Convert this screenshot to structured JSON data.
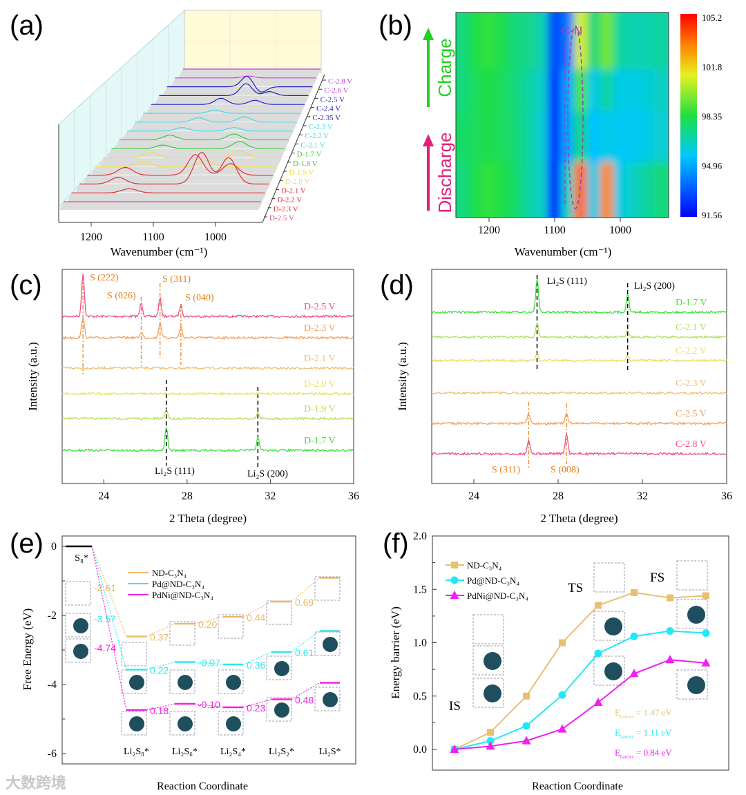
{
  "panel_labels": [
    "(a)",
    "(b)",
    "(c)",
    "(d)",
    "(e)",
    "(f)"
  ],
  "watermark": "大数跨境",
  "chart_data": [
    {
      "panel": "a",
      "type": "line",
      "subtype": "3d-waterfall",
      "xlabel": "Wavenumber (cm⁻¹)",
      "xticks": [
        "1200",
        "1100",
        "1000"
      ],
      "xlim": [
        1245,
        925
      ],
      "series": [
        {
          "name": "D-2.5 V",
          "color": "#e0408a",
          "peaks": []
        },
        {
          "name": "D-2.3 V",
          "color": "#e03030",
          "peaks": [
            [
              1150,
              6
            ]
          ]
        },
        {
          "name": "D-2.2 V",
          "color": "#e03030",
          "peaks": [
            [
              1180,
              10
            ],
            [
              1040,
              48
            ],
            [
              995,
              40
            ]
          ]
        },
        {
          "name": "D-2.1 V",
          "color": "#e03030",
          "peaks": [
            [
              1180,
              12
            ],
            [
              1060,
              32
            ],
            [
              1000,
              18
            ]
          ]
        },
        {
          "name": "D-2.0 V",
          "color": "#e8e040",
          "peaks": [
            [
              1160,
              6
            ],
            [
              1050,
              8
            ]
          ]
        },
        {
          "name": "D-1.9 V",
          "color": "#e8e040",
          "peaks": [
            [
              1160,
              8
            ],
            [
              1000,
              10
            ]
          ]
        },
        {
          "name": "D-1.8 V",
          "color": "#30d030",
          "peaks": [
            [
              1150,
              6
            ],
            [
              1010,
              12
            ]
          ]
        },
        {
          "name": "D-1.7 V",
          "color": "#30d030",
          "peaks": [
            [
              1150,
              8
            ],
            [
              1030,
              10
            ]
          ]
        },
        {
          "name": "C-2.1 V",
          "color": "#40d8e8",
          "peaks": [
            [
              1140,
              6
            ],
            [
              1040,
              6
            ]
          ]
        },
        {
          "name": "C-2.2 V",
          "color": "#40d8e8",
          "peaks": [
            [
              1120,
              8
            ],
            [
              1030,
              10
            ]
          ]
        },
        {
          "name": "C-2.3 V",
          "color": "#40d8e8",
          "peaks": [
            [
              1100,
              6
            ]
          ]
        },
        {
          "name": "C-2.35 V",
          "color": "#2020c0",
          "peaks": [
            [
              1100,
              12
            ],
            [
              1030,
              8
            ]
          ]
        },
        {
          "name": "C-2.4 V",
          "color": "#2020c0",
          "peaks": [
            [
              1060,
              24
            ],
            [
              1010,
              8
            ]
          ]
        },
        {
          "name": "C-2.5 V",
          "color": "#2020c0",
          "peaks": [
            [
              1070,
              22
            ],
            [
              1040,
              -12
            ]
          ]
        },
        {
          "name": "C-2.6 V",
          "color": "#c040e0",
          "peaks": [
            [
              1080,
              4
            ]
          ]
        },
        {
          "name": "C-2.8 V",
          "color": "#c040e0",
          "peaks": []
        }
      ]
    },
    {
      "panel": "b",
      "type": "heatmap",
      "xlabel": "Wavenumber (cm⁻¹)",
      "xticks": [
        "1200",
        "1100",
        "1000"
      ],
      "xlim": [
        1250,
        930
      ],
      "annotation": "C-N",
      "side_labels": {
        "charge": "Charge",
        "discharge": "Discharge"
      },
      "colorbar": {
        "min": 91.56,
        "max": 105.2,
        "ticks": [
          "105.2",
          "101.8",
          "98.35",
          "94.96",
          "91.56"
        ]
      },
      "x_centers": [
        1240,
        1220,
        1200,
        1180,
        1160,
        1140,
        1120,
        1100,
        1080,
        1060,
        1040,
        1020,
        1000,
        980,
        960,
        940
      ],
      "rows": [
        {
          "region": "charge-top",
          "values": [
            97.5,
            98.3,
            98.6,
            98.2,
            97.6,
            97.3,
            96.8,
            93.0,
            94.0,
            100.8,
            97.5,
            99.5,
            97.0,
            96.8,
            96.8,
            97.0
          ]
        },
        {
          "region": "charge-mid",
          "values": [
            97.5,
            98.0,
            98.3,
            98.0,
            97.5,
            97.0,
            96.5,
            92.5,
            95.0,
            99.0,
            96.0,
            97.0,
            96.0,
            96.0,
            96.2,
            96.5
          ]
        },
        {
          "region": "charge-start",
          "values": [
            97.8,
            98.0,
            98.2,
            98.0,
            97.6,
            97.0,
            96.3,
            92.5,
            95.0,
            97.5,
            95.5,
            96.0,
            95.8,
            95.8,
            96.0,
            96.3
          ]
        },
        {
          "region": "discharge",
          "values": [
            97.5,
            98.2,
            98.6,
            98.3,
            97.8,
            97.0,
            96.5,
            92.0,
            96.5,
            103.5,
            96.0,
            103.0,
            96.0,
            96.5,
            97.0,
            97.5
          ]
        }
      ]
    },
    {
      "panel": "c",
      "type": "line",
      "xlabel": "2 Theta (degree)",
      "ylabel": "Intensity (a.u.)",
      "xlim": [
        22,
        36
      ],
      "xticks": [
        "24",
        "28",
        "32",
        "36"
      ],
      "series": [
        {
          "name": "D-2.5 V",
          "color": "#f0508a",
          "peaks": [
            [
              23.0,
              62
            ],
            [
              25.8,
              20
            ],
            [
              26.7,
              26
            ],
            [
              27.7,
              16
            ]
          ]
        },
        {
          "name": "D-2.3 V",
          "color": "#f0a060",
          "peaks": [
            [
              23.0,
              30
            ],
            [
              25.8,
              8
            ],
            [
              26.7,
              22
            ],
            [
              27.7,
              16
            ]
          ]
        },
        {
          "name": "D-2.1 V",
          "color": "#f0c070",
          "peaks": []
        },
        {
          "name": "D-2.0 V",
          "color": "#e8e060",
          "peaks": []
        },
        {
          "name": "D-1.9 V",
          "color": "#b8e060",
          "peaks": [
            [
              27.0,
              14
            ],
            [
              31.4,
              8
            ]
          ]
        },
        {
          "name": "D-1.7 V",
          "color": "#40e040",
          "peaks": [
            [
              27.0,
              34
            ],
            [
              31.4,
              18
            ]
          ]
        }
      ],
      "annotations": [
        {
          "text": "S (222)",
          "color": "#e08020",
          "x": 23.0
        },
        {
          "text": "S (026)",
          "color": "#e08020",
          "x": 25.8
        },
        {
          "text": "S (311)",
          "color": "#e08020",
          "x": 26.7
        },
        {
          "text": "S (040)",
          "color": "#e08020",
          "x": 27.7
        },
        {
          "text": "Li₂S (111)",
          "color": "#000000",
          "x": 27.0
        },
        {
          "text": "Li₂S (200)",
          "color": "#000000",
          "x": 31.4
        }
      ]
    },
    {
      "panel": "d",
      "type": "line",
      "xlabel": "2 Theta (degree)",
      "ylabel": "Intensity (a.u.)",
      "xlim": [
        22,
        36
      ],
      "xticks": [
        "24",
        "28",
        "32",
        "36"
      ],
      "series": [
        {
          "name": "D-1.7 V",
          "color": "#40e040",
          "peaks": [
            [
              27.0,
              48
            ],
            [
              31.3,
              26
            ]
          ]
        },
        {
          "name": "C-2.1 V",
          "color": "#b0e060",
          "peaks": [
            [
              27.0,
              20
            ],
            [
              31.3,
              10
            ]
          ]
        },
        {
          "name": "C-2.2 V",
          "color": "#e8e060",
          "peaks": [
            [
              27.0,
              10
            ],
            [
              31.3,
              7
            ]
          ]
        },
        {
          "name": "C-2.3 V",
          "color": "#f0c070",
          "peaks": []
        },
        {
          "name": "C-2.5 V",
          "color": "#f0a060",
          "peaks": [
            [
              26.6,
              14
            ],
            [
              28.4,
              14
            ]
          ]
        },
        {
          "name": "C-2.8 V",
          "color": "#f0508a",
          "peaks": [
            [
              26.6,
              20
            ],
            [
              28.4,
              28
            ]
          ]
        }
      ],
      "annotations": [
        {
          "text": "Li₂S (111)",
          "color": "#000000",
          "x": 27.0
        },
        {
          "text": "Li₂S (200)",
          "color": "#000000",
          "x": 31.3
        },
        {
          "text": "S (311)",
          "color": "#e08020",
          "x": 26.6
        },
        {
          "text": "S (008)",
          "color": "#e08020",
          "x": 28.4
        }
      ]
    },
    {
      "panel": "e",
      "type": "line",
      "subtype": "energy-level-diagram",
      "xlabel": "Reaction Coordinate",
      "ylabel": "Free Energy (eV)",
      "ylim": [
        -6.3,
        0.3
      ],
      "yticks": [
        "0",
        "-2",
        "-4",
        "-6"
      ],
      "categories": [
        "S₈*",
        "Li₂S₈*",
        "Li₂S₆*",
        "Li₂S₄*",
        "Li₂S₂*",
        "Li₂S*"
      ],
      "series": [
        {
          "name": "ND-C₃N₄",
          "color": "#e8b868",
          "values": [
            0,
            -2.61,
            -2.24,
            -2.04,
            -1.6,
            -0.91
          ],
          "steps": [
            "-2.61",
            "0.37",
            "0.20",
            "0.44",
            "0.69"
          ]
        },
        {
          "name": "Pd@ND-C₃N₄",
          "color": "#30e8f0",
          "values": [
            0,
            -3.57,
            -3.35,
            -3.42,
            -3.06,
            -2.45
          ],
          "steps": [
            "-3.57",
            "0.22",
            "-0.07",
            "0.36",
            "0.61"
          ]
        },
        {
          "name": "PdNi@ND-C₃N₄",
          "color": "#f020e0",
          "values": [
            0,
            -4.74,
            -4.56,
            -4.66,
            -4.43,
            -3.95
          ],
          "steps": [
            "-4.74",
            "0.18",
            "-0.10",
            "0.23",
            "0.48"
          ]
        }
      ]
    },
    {
      "panel": "f",
      "type": "line",
      "xlabel": "Reaction Coordinate",
      "ylabel": "Energy barrier (eV)",
      "ylim": [
        -0.07,
        2.0
      ],
      "yticks": [
        "0.0",
        "0.5",
        "1.0",
        "1.5",
        "2.0"
      ],
      "x": [
        1,
        2,
        3,
        4,
        5,
        6,
        7,
        8
      ],
      "state_labels": [
        "IS",
        "TS",
        "FS"
      ],
      "series": [
        {
          "name": "ND-C₃N₄",
          "color": "#e8c070",
          "marker": "square",
          "values": [
            0,
            0.16,
            0.5,
            1.0,
            1.35,
            1.47,
            1.42,
            1.44
          ],
          "barrier": "= 1.47 eV"
        },
        {
          "name": "Pd@ND-C₃N₄",
          "color": "#20e8f8",
          "marker": "circle",
          "values": [
            0,
            0.08,
            0.22,
            0.51,
            0.9,
            1.06,
            1.11,
            1.09
          ],
          "barrier": "= 1.11 eV"
        },
        {
          "name": "PdNi@ND-C₃N₄",
          "color": "#f020f0",
          "marker": "triangle",
          "values": [
            0,
            0.03,
            0.08,
            0.19,
            0.44,
            0.71,
            0.84,
            0.81
          ],
          "barrier": "= 0.84 eV"
        }
      ],
      "barrier_symbol": "E",
      "barrier_sub": "barrier"
    }
  ]
}
